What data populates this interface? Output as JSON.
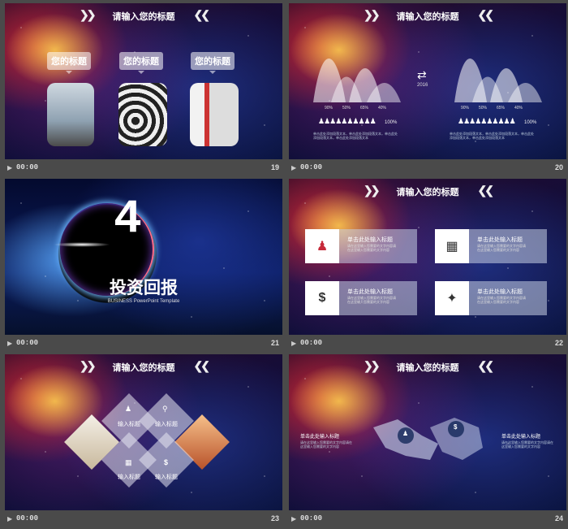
{
  "slides": [
    {
      "number": "19",
      "time": "00:00",
      "title": "请输入您的标题",
      "bubbles": [
        "您的标题",
        "您的标题",
        "您的标题"
      ]
    },
    {
      "number": "20",
      "time": "00:00",
      "title": "请输入您的标题",
      "year": "2016",
      "left_pcts": [
        "90%",
        "50%",
        "65%",
        "40%"
      ],
      "right_pcts": [
        "90%",
        "50%",
        "65%",
        "40%"
      ],
      "left_total": "100%",
      "right_total": "100%",
      "body_text": "单击此处添加段落文本，单击此处添加段落文本，单击此处添加段落文本，单击此处添加段落文本"
    },
    {
      "number": "21",
      "time": "00:00",
      "big_number": "4",
      "heading": "投资回报",
      "subheading": "BUSINESS PowerPoint Template"
    },
    {
      "number": "22",
      "time": "00:00",
      "title": "请输入您的标题",
      "items": [
        {
          "title": "单击此处输入标题",
          "text": "请在这里输入您需要的文字内容请在这里输入您需要的文字内容",
          "icon": "people-icon"
        },
        {
          "title": "单击此处输入标题",
          "text": "请在这里输入您需要的文字内容请在这里输入您需要的文字内容",
          "icon": "building-icon"
        },
        {
          "title": "单击此处输入标题",
          "text": "请在这里输入您需要的文字内容请在这里输入您需要的文字内容",
          "icon": "money-icon"
        },
        {
          "title": "单击此处输入标题",
          "text": "请在这里输入您需要的文字内容请在这里输入您需要的文字内容",
          "icon": "twitter-icon"
        }
      ]
    },
    {
      "number": "23",
      "time": "00:00",
      "title": "请输入您的标题",
      "labels": [
        "输入标题",
        "输入标题",
        "输入标题",
        "输入标题"
      ]
    },
    {
      "number": "24",
      "time": "00:00",
      "title": "请输入您的标题",
      "left_title": "单击此处输入标题",
      "left_text": "请在这里输入您需要的文字内容请在这里输入您需要的文字内容",
      "right_title": "单击此处输入标题",
      "right_text": "请在这里输入您需要的文字内容请在这里输入您需要的文字内容"
    }
  ]
}
